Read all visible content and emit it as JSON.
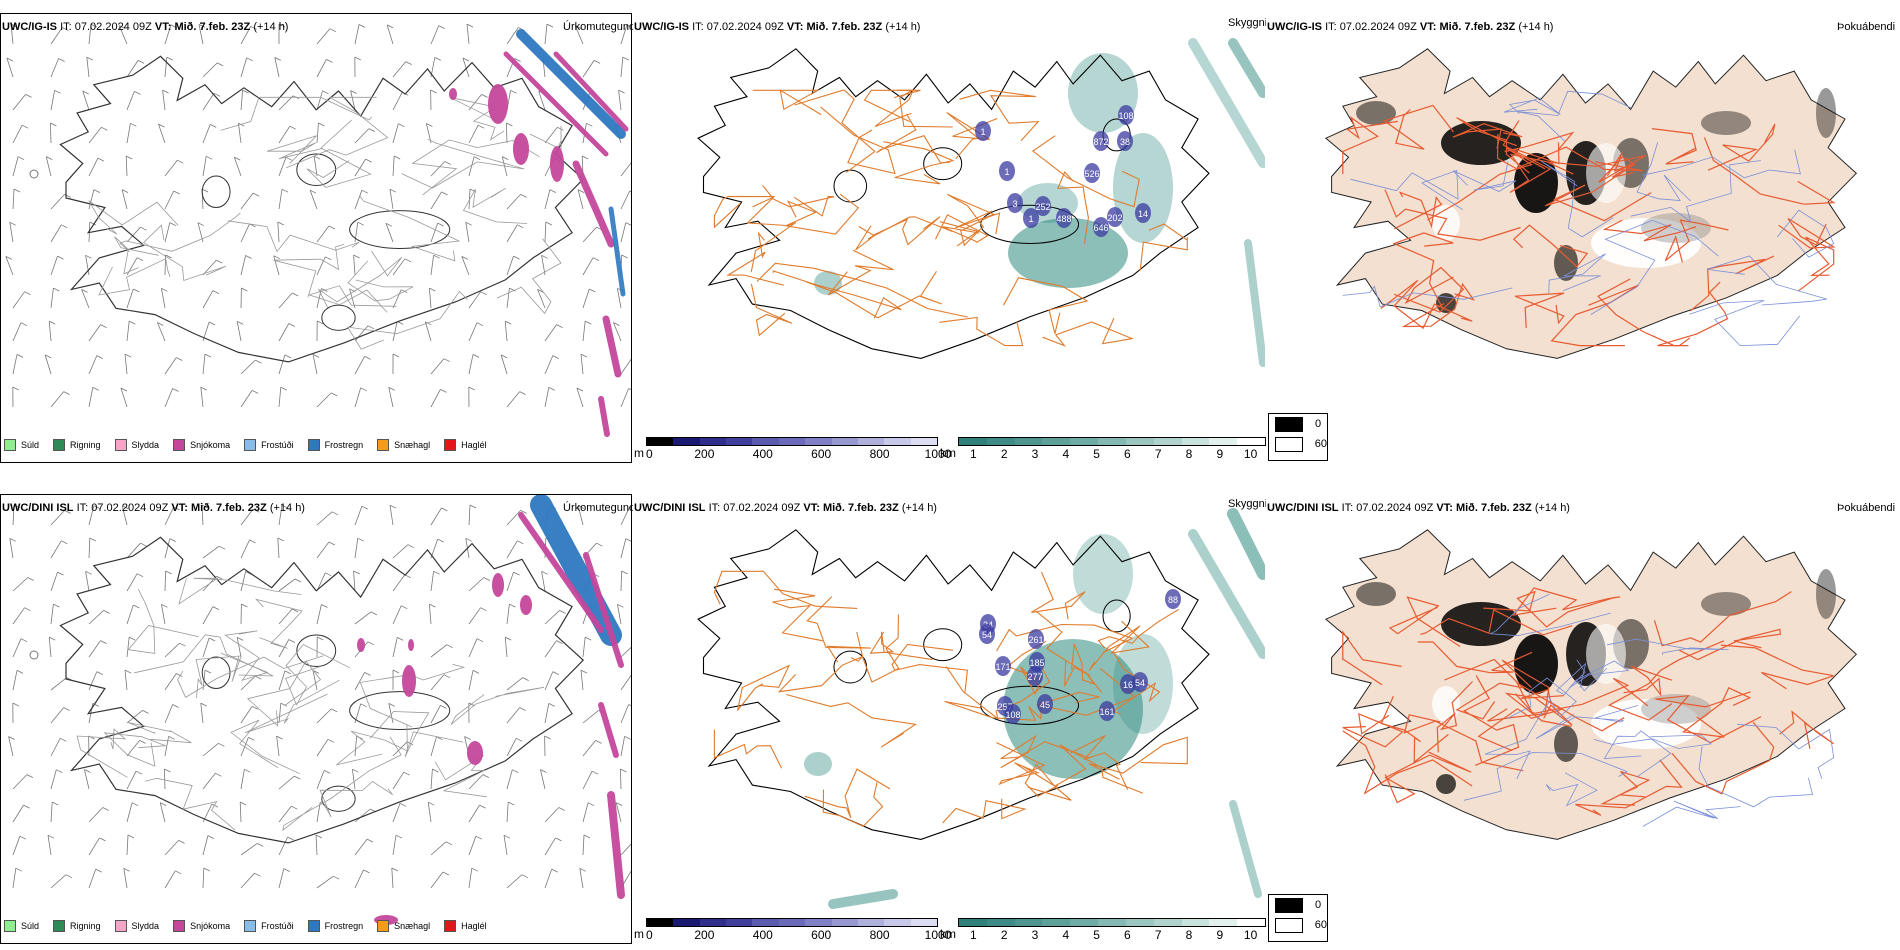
{
  "rows": [
    {
      "model": "UWC/IG-IS",
      "it_label": "IT:",
      "it_value": "07.02.2024 09Z",
      "vt_label": "VT:",
      "vt_value": "Mið. 7.feb. 23Z",
      "lead": "(+14 h)"
    },
    {
      "model": "UWC/DINI ISL",
      "it_label": "IT:",
      "it_value": "07.02.2024 09Z",
      "vt_label": "VT:",
      "vt_value": "Mið. 7.feb. 23Z",
      "lead": "(+14 h)"
    }
  ],
  "panel_titles": {
    "precip": "Úrkomutegund",
    "cloud": "Skyggni",
    "fog": "Þokuábendi"
  },
  "precip_legend": [
    {
      "label": "Súld",
      "color": "#90ee90"
    },
    {
      "label": "Rigning",
      "color": "#2e8b57"
    },
    {
      "label": "Slydda",
      "color": "#f4a6c8"
    },
    {
      "label": "Snjókoma",
      "color": "#c4479c"
    },
    {
      "label": "Frostúði",
      "color": "#87bde8"
    },
    {
      "label": "Frostregn",
      "color": "#2e78c0"
    },
    {
      "label": "Snæhagl",
      "color": "#f29b1c"
    },
    {
      "label": "Haglél",
      "color": "#e01818"
    }
  ],
  "elevation_bar": {
    "unit": "m",
    "ticks": [
      "0",
      "200",
      "400",
      "600",
      "800",
      "1000"
    ],
    "colors": [
      "#000000",
      "#191970",
      "#2e2e8b",
      "#40409c",
      "#5a5aae",
      "#6a6ab8",
      "#8080c4",
      "#9898d0",
      "#b0b0dc",
      "#c8c8e8",
      "#dcdcf2"
    ]
  },
  "visibility_bar": {
    "unit": "km",
    "ticks": [
      "1",
      "2",
      "3",
      "4",
      "5",
      "6",
      "7",
      "8",
      "9",
      "10"
    ],
    "colors": [
      "#2f7f7a",
      "#3e8a85",
      "#4e958f",
      "#5ea09a",
      "#70aca6",
      "#84b9b3",
      "#9ac6c0",
      "#b0d3ce",
      "#c8e2de",
      "#e2f0ee",
      "#ffffff"
    ]
  },
  "fog_legend": [
    {
      "value": "0",
      "color": "#000000"
    },
    {
      "value": "60",
      "color": "#ffffff"
    }
  ],
  "cloud_labels_top": [
    "108",
    "1",
    "872",
    "38",
    "526",
    "1",
    "3",
    "252",
    "1",
    "488",
    "14",
    "202",
    "646"
  ],
  "cloud_labels_bottom": [
    "88",
    "34",
    "54",
    "261",
    "185",
    "277",
    "171",
    "257",
    "108",
    "45",
    "16",
    "161",
    "54"
  ],
  "colors": {
    "road": "#e07b2c",
    "road_fog": "#e85a30",
    "land_fog": "#f3e0d0",
    "coast": "#000000",
    "teal": "#2f8a80",
    "snow": "#c4479c",
    "frz": "#2e78c0",
    "river": "#7a8fd8"
  }
}
